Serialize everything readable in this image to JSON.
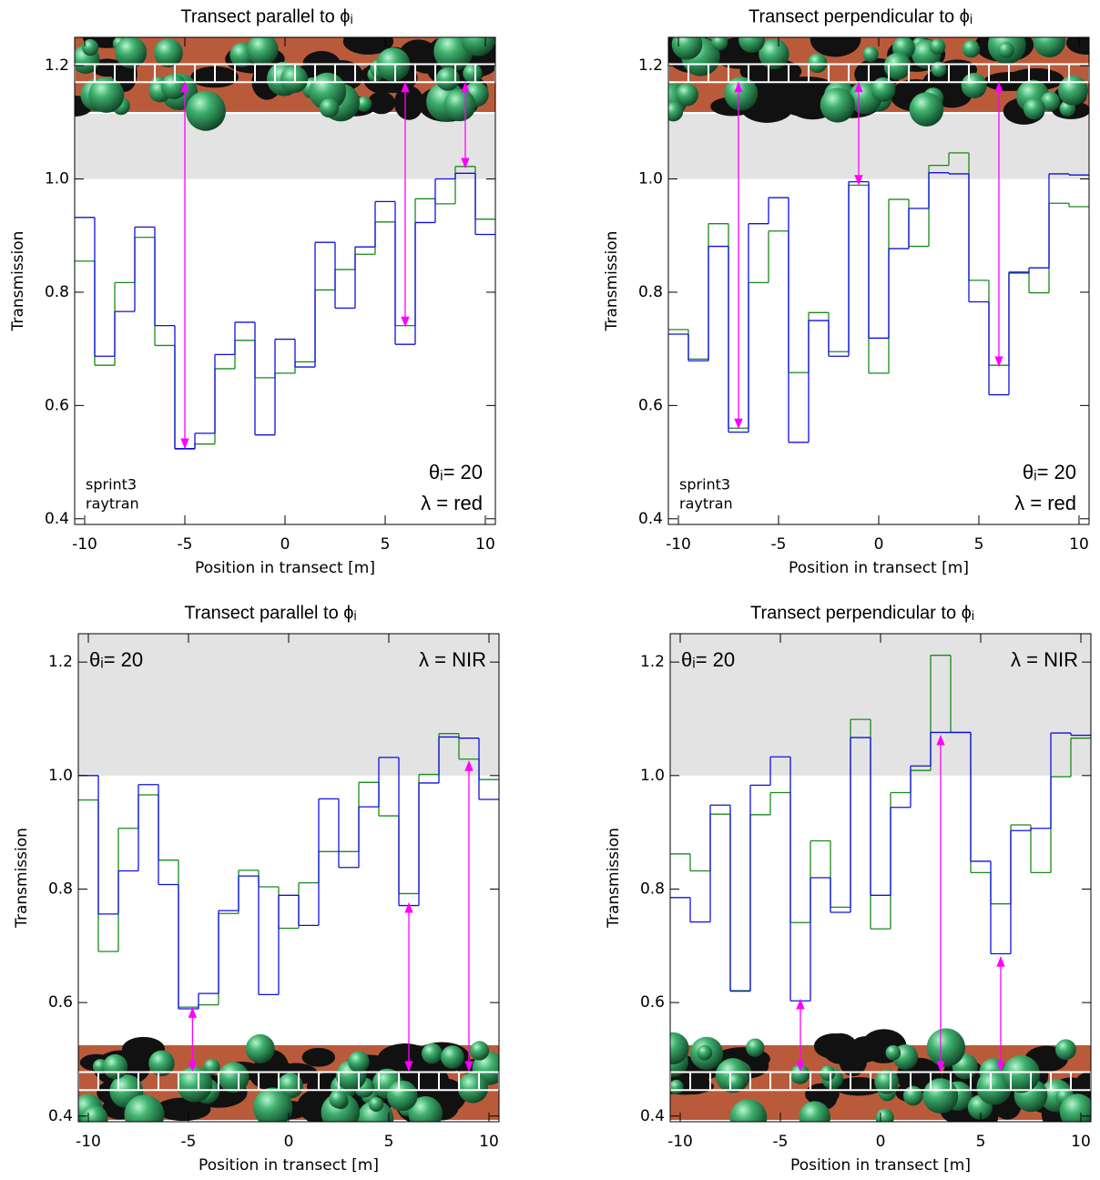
{
  "chart_data": [
    {
      "type": "step",
      "title": "Transect parallel to ϕᵢ",
      "x_label": "Position in transect [m]",
      "y_label": "Transmission",
      "x": [
        -10,
        -9,
        -8,
        -7,
        -6,
        -5,
        -4,
        -3,
        -2,
        -1,
        0,
        1,
        2,
        3,
        4,
        5,
        6,
        7,
        8,
        9,
        10
      ],
      "xlim": [
        -10.5,
        10.5
      ],
      "xticks": [
        -10,
        -5,
        0,
        5,
        10
      ],
      "ylim": [
        0.39,
        1.25
      ],
      "yticks": [
        0.4,
        0.6,
        0.8,
        {
          "value": 1,
          "label": "1.0"
        },
        1.2
      ],
      "shade": [
        1.0,
        1.115
      ],
      "inset": "top",
      "legend": "lower left",
      "series": [
        {
          "name": "sprint3",
          "color": "#1a8a1a",
          "values": [
            0.855,
            0.671,
            0.817,
            0.897,
            0.706,
            0.523,
            0.532,
            0.665,
            0.715,
            0.649,
            0.657,
            0.677,
            0.804,
            0.84,
            0.867,
            0.924,
            0.741,
            0.965,
            0.956,
            1.022,
            0.929
          ]
        },
        {
          "name": "raytran",
          "color": "#1010e0",
          "values": [
            0.932,
            0.687,
            0.766,
            0.915,
            0.741,
            0.524,
            0.551,
            0.69,
            0.747,
            0.548,
            0.717,
            0.668,
            0.888,
            0.772,
            0.88,
            0.96,
            0.708,
            0.923,
            1.0,
            1.01,
            0.902
          ]
        }
      ],
      "annotations": [
        {
          "text": "θᵢ= 20",
          "position": "lower right"
        },
        {
          "text": "λ = red",
          "position": "lower right"
        }
      ],
      "arrows": [
        {
          "x": -5,
          "y": [
            1.17,
            0.525
          ]
        },
        {
          "x": 6,
          "y": [
            1.17,
            0.74
          ]
        },
        {
          "x": 9,
          "y": [
            1.17,
            1.02
          ]
        }
      ]
    },
    {
      "type": "step",
      "title": "Transect perpendicular to ϕᵢ",
      "x_label": "Position in transect [m]",
      "y_label": "Transmission",
      "x": [
        -10,
        -9,
        -8,
        -7,
        -6,
        -5,
        -4,
        -3,
        -2,
        -1,
        0,
        1,
        2,
        3,
        4,
        5,
        6,
        7,
        8,
        9,
        10
      ],
      "xlim": [
        -10.5,
        10.5
      ],
      "xticks": [
        -10,
        -5,
        0,
        5,
        10
      ],
      "ylim": [
        0.39,
        1.25
      ],
      "yticks": [
        0.4,
        0.6,
        0.8,
        {
          "value": 1,
          "label": "1.0"
        },
        1.2
      ],
      "shade": [
        1.0,
        1.115
      ],
      "inset": "top",
      "legend": "lower left",
      "series": [
        {
          "name": "sprint3",
          "color": "#1a8a1a",
          "values": [
            0.734,
            0.682,
            0.921,
            0.56,
            0.817,
            0.908,
            0.658,
            0.764,
            0.695,
            0.989,
            0.657,
            0.964,
            0.881,
            1.024,
            1.046,
            0.821,
            0.671,
            0.836,
            0.799,
            0.957,
            0.951
          ]
        },
        {
          "name": "raytran",
          "color": "#1010e0",
          "values": [
            0.726,
            0.679,
            0.881,
            0.553,
            0.921,
            0.967,
            0.535,
            0.75,
            0.687,
            0.995,
            0.719,
            0.877,
            0.948,
            1.011,
            1.009,
            0.783,
            0.619,
            0.834,
            0.843,
            1.009,
            1.007
          ]
        }
      ],
      "annotations": [
        {
          "text": "θᵢ= 20",
          "position": "lower right"
        },
        {
          "text": "λ = red",
          "position": "lower right"
        }
      ],
      "arrows": [
        {
          "x": -7,
          "y": [
            1.17,
            0.56
          ]
        },
        {
          "x": -1,
          "y": [
            1.17,
            0.99
          ]
        },
        {
          "x": 6,
          "y": [
            1.17,
            0.67
          ]
        }
      ]
    },
    {
      "type": "step",
      "title": "Transect parallel to ϕᵢ",
      "x_label": "Position in transect [m]",
      "y_label": "Transmission",
      "x": [
        -10,
        -9,
        -8,
        -7,
        -6,
        -5,
        -4,
        -3,
        -2,
        -1,
        0,
        1,
        2,
        3,
        4,
        5,
        6,
        7,
        8,
        9,
        10
      ],
      "xlim": [
        -10.5,
        10.5
      ],
      "xticks": [
        -10,
        -5,
        0,
        5,
        10
      ],
      "ylim": [
        0.39,
        1.25
      ],
      "yticks": [
        0.4,
        0.6,
        0.8,
        {
          "value": 1,
          "label": "1.0"
        },
        1.2
      ],
      "shade": [
        1.0,
        1.25
      ],
      "inset": "bottom",
      "series": [
        {
          "color": "#1a8a1a",
          "values": [
            0.957,
            0.69,
            0.907,
            0.966,
            0.851,
            0.592,
            0.596,
            0.757,
            0.833,
            0.804,
            0.731,
            0.811,
            0.866,
            0.866,
            0.988,
            0.929,
            0.792,
            1.002,
            1.074,
            1.029,
            0.993
          ]
        },
        {
          "color": "#1010e0",
          "values": [
            1.0,
            0.756,
            0.832,
            0.984,
            0.808,
            0.589,
            0.616,
            0.762,
            0.823,
            0.614,
            0.789,
            0.736,
            0.959,
            0.838,
            0.945,
            1.032,
            0.771,
            0.987,
            1.068,
            1.066,
            0.958
          ]
        }
      ],
      "annotations": [
        {
          "text": "θᵢ= 20",
          "position": "upper left"
        },
        {
          "text": "λ = NIR",
          "position": "upper right"
        }
      ],
      "arrows": [
        {
          "x": -4.8,
          "y": [
            0.48,
            0.59
          ]
        },
        {
          "x": 6,
          "y": [
            0.48,
            0.775
          ]
        },
        {
          "x": 9,
          "y": [
            0.48,
            1.025
          ]
        }
      ]
    },
    {
      "type": "step",
      "title": "Transect perpendicular to ϕᵢ",
      "x_label": "Position in transect [m]",
      "y_label": "Transmission",
      "x": [
        -10,
        -9,
        -8,
        -7,
        -6,
        -5,
        -4,
        -3,
        -2,
        -1,
        0,
        1,
        2,
        3,
        4,
        5,
        6,
        7,
        8,
        9,
        10
      ],
      "xlim": [
        -10.5,
        10.5
      ],
      "xticks": [
        -10,
        -5,
        0,
        5,
        10
      ],
      "ylim": [
        0.39,
        1.25
      ],
      "yticks": [
        0.4,
        0.6,
        0.8,
        {
          "value": 1,
          "label": "1.0"
        },
        1.2
      ],
      "shade": [
        1.0,
        1.25
      ],
      "inset": "bottom",
      "series": [
        {
          "color": "#1a8a1a",
          "values": [
            0.862,
            0.832,
            0.932,
            0.621,
            0.931,
            0.97,
            0.741,
            0.885,
            0.768,
            1.099,
            0.73,
            0.97,
            1.009,
            1.212,
            1.076,
            0.829,
            0.774,
            0.913,
            0.829,
            0.998,
            1.066
          ]
        },
        {
          "color": "#1010e0",
          "values": [
            0.785,
            0.742,
            0.948,
            0.62,
            0.983,
            1.033,
            0.603,
            0.82,
            0.759,
            1.067,
            0.789,
            0.944,
            1.017,
            1.076,
            1.076,
            0.849,
            0.686,
            0.903,
            0.907,
            1.075,
            1.071
          ]
        }
      ],
      "annotations": [
        {
          "text": "θᵢ= 20",
          "position": "upper left"
        },
        {
          "text": "λ = NIR",
          "position": "upper right"
        }
      ],
      "arrows": [
        {
          "x": -4,
          "y": [
            0.48,
            0.605
          ]
        },
        {
          "x": 3,
          "y": [
            0.48,
            1.07
          ]
        },
        {
          "x": 6,
          "y": [
            0.48,
            0.68
          ]
        }
      ]
    }
  ]
}
